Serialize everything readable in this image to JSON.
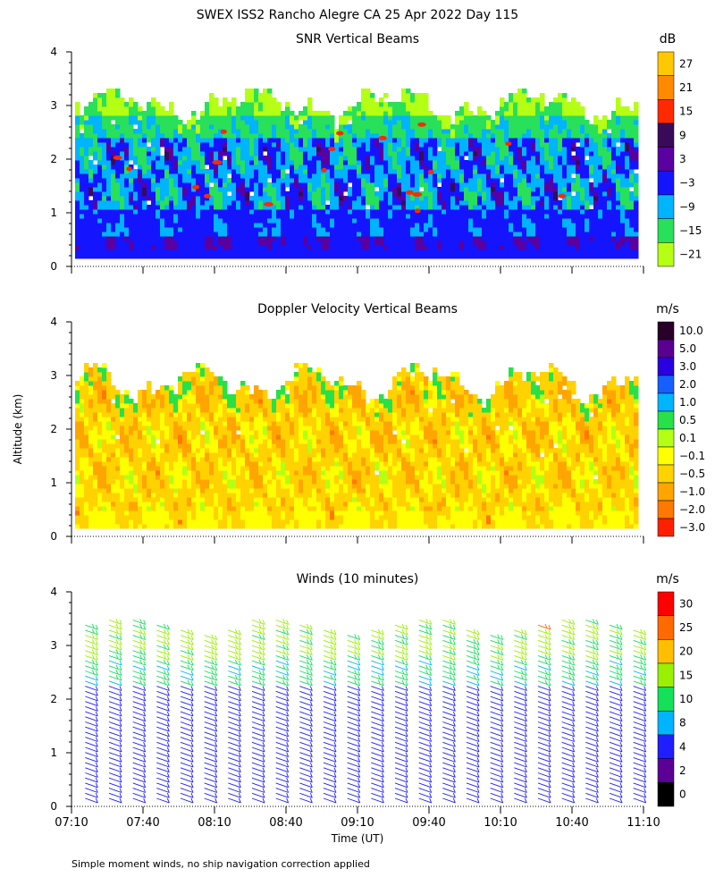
{
  "figure": {
    "title": "SWEX ISS2 Rancho Alegre CA  25 Apr 2022 Day 115",
    "ylabel": "Altitude (km)",
    "xlabel": "Time (UT)",
    "footnote": "Simple moment winds, no ship navigation correction applied"
  },
  "chart_data": [
    {
      "type": "heatmap",
      "title": "SNR Vertical Beams",
      "xlabel": "Time (UT)",
      "ylabel": "Altitude (km)",
      "xlim": [
        "07:10",
        "11:10"
      ],
      "ylim": [
        0,
        4
      ],
      "y_ticks": [
        "0",
        "1",
        "2",
        "3",
        "4"
      ],
      "colorbar_unit": "dB",
      "colorbar_labels": [
        "27",
        "21",
        "15",
        "9",
        "3",
        "−3",
        "−9",
        "−15",
        "−21"
      ],
      "colorbar_colors": [
        "#ffc800",
        "#ff8a00",
        "#ff2a00",
        "#3a0a5a",
        "#5a00a0",
        "#1414ff",
        "#00b4ff",
        "#28e05a",
        "#b4ff14"
      ],
      "note": "Gridded SNR field 0.15-3.2 km altitude; values mostly -15 to -3 dB, high near 0.4 km and scattered cores up to ~15 dB"
    },
    {
      "type": "heatmap",
      "title": "Doppler Velocity Vertical Beams",
      "xlabel": "Time (UT)",
      "ylabel": "Altitude (km)",
      "xlim": [
        "07:10",
        "11:10"
      ],
      "ylim": [
        0,
        4
      ],
      "y_ticks": [
        "0",
        "1",
        "2",
        "3",
        "4"
      ],
      "colorbar_unit": "m/s",
      "colorbar_labels": [
        "10.0",
        "5.0",
        "3.0",
        "2.0",
        "1.0",
        "0.5",
        "0.1",
        "−0.1",
        "−0.5",
        "−1.0",
        "−2.0",
        "−3.0"
      ],
      "colorbar_colors": [
        "#280028",
        "#5a0090",
        "#2a00e0",
        "#1460ff",
        "#00b4ff",
        "#28e048",
        "#b4ff14",
        "#ffff00",
        "#ffd200",
        "#ffa500",
        "#ff7800",
        "#ff2000"
      ],
      "note": "Vertical velocities mostly -1.0 to -0.1 m/s (downward), occasional 0.1-1.0 m/s"
    },
    {
      "type": "wind_barbs",
      "title": "Winds (10 minutes)",
      "xlabel": "Time (UT)",
      "ylabel": "Altitude (km)",
      "xlim": [
        "07:10",
        "11:10"
      ],
      "ylim": [
        0,
        4
      ],
      "y_ticks": [
        "0",
        "1",
        "2",
        "3",
        "4"
      ],
      "x_ticks": [
        "07:10",
        "07:40",
        "08:10",
        "08:40",
        "09:10",
        "09:40",
        "10:10",
        "10:40",
        "11:10"
      ],
      "profile_interval_min": 10,
      "profile_count": 24,
      "colorbar_unit": "m/s",
      "colorbar_labels": [
        "30",
        "25",
        "20",
        "15",
        "10",
        "8",
        "4",
        "2",
        "0"
      ],
      "colorbar_colors": [
        "#ff0000",
        "#ff6a00",
        "#ffbe00",
        "#9bf000",
        "#14e05a",
        "#00b4ff",
        "#1e1eff",
        "#5a0096",
        "#000000"
      ],
      "note": "Winds ~4-8 m/s below 2.3 km, increasing to 12-20 m/s near 2.8-3.4 km; 25-30 m/s at ~3.5 km near 10:40"
    }
  ]
}
